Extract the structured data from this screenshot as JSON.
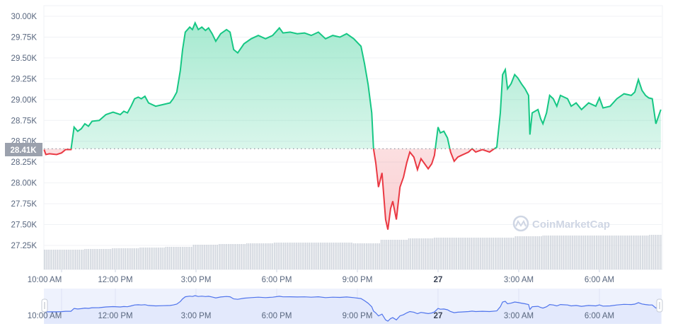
{
  "chart_data": {
    "type": "area",
    "y_ticks": [
      "30.00K",
      "29.75K",
      "29.50K",
      "29.25K",
      "29.00K",
      "28.75K",
      "28.50K",
      "28.25K",
      "28.00K",
      "27.75K",
      "27.50K",
      "27.25K"
    ],
    "y_tick_values": [
      30.0,
      29.75,
      29.5,
      29.25,
      29.0,
      28.75,
      28.5,
      28.25,
      28.0,
      27.75,
      27.5,
      27.25
    ],
    "ylim": [
      27.25,
      30.0
    ],
    "yunit": "K",
    "x_ticks": [
      "10:00 AM",
      "12:00 PM",
      "3:00 PM",
      "6:00 PM",
      "9:00 PM",
      "27",
      "3:00 AM",
      "6:00 AM"
    ],
    "x_tick_times": [
      "10:00",
      "12:00",
      "15:00",
      "18:00",
      "21:00",
      "00:00",
      "03:00",
      "06:00"
    ],
    "baseline": {
      "value": 28.41,
      "label": "28.41K"
    },
    "colors": {
      "up": "#16c784",
      "down": "#ea3943",
      "navigator_line": "#4f74ec",
      "navigator_fill": "#e3e9fc",
      "volume": "#cfd4dc",
      "baseline_label_bg": "#9ba1ad"
    },
    "grid": true,
    "watermark": "CoinMarketCap",
    "series": [
      {
        "time": [
          "09:21",
          "09:25",
          "09:33",
          "09:49",
          "10:00",
          "10:09",
          "10:21",
          "10:28",
          "10:36",
          "10:44",
          "10:52",
          "11:00",
          "11:08",
          "11:24",
          "11:39",
          "11:55",
          "12:11",
          "12:19",
          "12:27",
          "12:35",
          "12:43",
          "12:51",
          "12:58",
          "13:06",
          "13:14",
          "13:30",
          "13:46",
          "14:02",
          "14:09",
          "14:17",
          "14:25",
          "14:30",
          "14:36",
          "14:46",
          "14:52",
          "14:58",
          "15:05",
          "15:13",
          "15:21",
          "15:28",
          "15:36",
          "15:44",
          "15:55",
          "16:08",
          "16:16",
          "16:24",
          "16:33",
          "16:47",
          "17:03",
          "17:19",
          "17:35",
          "17:51",
          "18:06",
          "18:14",
          "18:30",
          "18:46",
          "19:02",
          "19:17",
          "19:33",
          "19:49",
          "20:05",
          "20:21",
          "20:36",
          "20:52",
          "21:08",
          "21:16",
          "21:24",
          "21:32",
          "21:36",
          "21:41",
          "21:47",
          "21:55",
          "22:03",
          "22:08",
          "22:14",
          "22:19",
          "22:27",
          "22:35",
          "22:43",
          "22:50",
          "22:57",
          "23:06",
          "23:14",
          "23:22",
          "23:30",
          "23:38",
          "23:46",
          "23:52",
          "00:00",
          "00:05",
          "00:13",
          "00:21",
          "00:28",
          "00:36",
          "00:44",
          "00:52",
          "01:08",
          "01:16",
          "01:24",
          "01:39",
          "01:55",
          "02:11",
          "02:19",
          "02:24",
          "02:30",
          "02:35",
          "02:43",
          "02:51",
          "02:58",
          "03:06",
          "03:14",
          "03:22",
          "03:25",
          "03:30",
          "03:43",
          "03:49",
          "03:54",
          "04:02",
          "04:09",
          "04:17",
          "04:25",
          "04:33",
          "04:49",
          "04:57",
          "05:08",
          "05:20",
          "05:36",
          "05:52",
          "06:00",
          "06:08",
          "06:24",
          "06:39",
          "06:55",
          "07:11",
          "07:19",
          "07:27",
          "07:35",
          "07:43",
          "07:50",
          "07:58",
          "08:06",
          "08:17"
        ],
        "price": [
          28.4,
          28.34,
          28.35,
          28.34,
          28.36,
          28.4,
          28.4,
          28.67,
          28.62,
          28.65,
          28.71,
          28.68,
          28.74,
          28.75,
          28.82,
          28.85,
          28.82,
          28.86,
          28.84,
          28.92,
          29.01,
          29.03,
          29.01,
          29.04,
          28.96,
          28.92,
          28.94,
          28.96,
          29.01,
          29.09,
          29.35,
          29.6,
          29.81,
          29.87,
          29.84,
          29.92,
          29.84,
          29.87,
          29.83,
          29.86,
          29.79,
          29.7,
          29.79,
          29.84,
          29.81,
          29.6,
          29.56,
          29.67,
          29.73,
          29.77,
          29.73,
          29.77,
          29.86,
          29.8,
          29.81,
          29.79,
          29.8,
          29.77,
          29.81,
          29.73,
          29.77,
          29.75,
          29.79,
          29.73,
          29.64,
          29.43,
          29.18,
          28.84,
          28.41,
          28.24,
          27.95,
          28.12,
          27.56,
          27.44,
          27.69,
          27.78,
          27.56,
          27.95,
          28.07,
          28.24,
          28.37,
          28.31,
          28.16,
          28.29,
          28.23,
          28.17,
          28.23,
          28.33,
          28.67,
          28.6,
          28.62,
          28.54,
          28.37,
          28.26,
          28.31,
          28.33,
          28.37,
          28.41,
          28.37,
          28.4,
          28.37,
          28.43,
          28.84,
          29.3,
          29.36,
          29.13,
          29.19,
          29.3,
          29.26,
          29.19,
          29.13,
          29.05,
          28.58,
          28.84,
          28.88,
          28.77,
          28.71,
          28.84,
          29.05,
          29.01,
          28.92,
          29.05,
          29.01,
          28.92,
          28.96,
          28.88,
          28.96,
          28.92,
          29.02,
          28.9,
          28.92,
          29.01,
          29.07,
          29.05,
          29.09,
          29.24,
          29.11,
          29.05,
          29.02,
          29.01,
          28.71,
          28.88
        ]
      }
    ],
    "volume_relative": [
      28,
      28,
      29,
      30,
      31,
      32,
      35,
      36,
      37,
      38,
      38,
      38,
      37,
      42,
      44,
      45,
      45,
      45,
      47,
      48,
      48,
      48,
      48,
      49
    ]
  }
}
